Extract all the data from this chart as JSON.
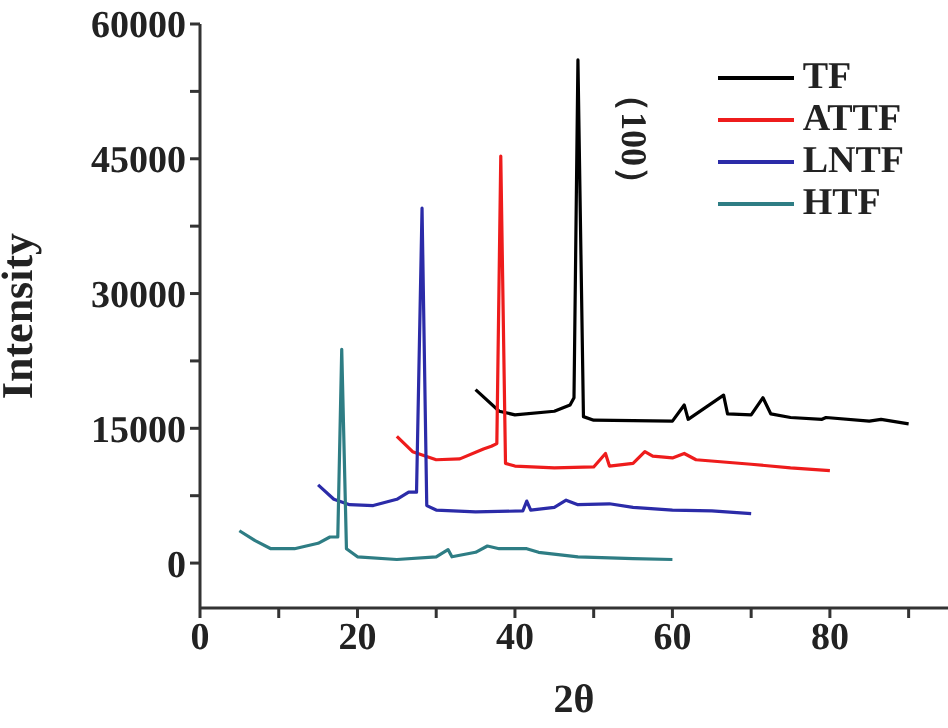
{
  "chart_data": {
    "type": "line",
    "xlabel": "2θ",
    "ylabel": "Intensity",
    "xlim": [
      0,
      95
    ],
    "ylim": [
      -5000,
      60000
    ],
    "xticks": [
      0,
      {
        "value": 10,
        "label": null
      },
      20,
      {
        "value": 30,
        "label": null
      },
      40,
      {
        "value": 50,
        "label": null
      },
      60,
      {
        "value": 70,
        "label": null
      },
      80,
      {
        "value": 90,
        "label": null
      }
    ],
    "yticks": [
      0,
      {
        "value": 7500,
        "label": null
      },
      15000,
      {
        "value": 22500,
        "label": null
      },
      30000,
      {
        "value": 37500,
        "label": null
      },
      45000,
      {
        "value": 52500,
        "label": null
      },
      60000
    ],
    "legend": "top right",
    "marker": "none",
    "line_style": "solid",
    "annotations": [
      {
        "text": "（100）",
        "x": 48,
        "y": 56000
      }
    ],
    "series": [
      {
        "name": "TF",
        "color": "#000000",
        "x": [
          35,
          38,
          40,
          45,
          47,
          47.5,
          48,
          48.7,
          50,
          60,
          61.5,
          62,
          66.5,
          67,
          70,
          71.5,
          72.5,
          75,
          79,
          79.5,
          85,
          86.5,
          90
        ],
        "values": [
          19300,
          16900,
          16500,
          16900,
          17600,
          18400,
          56000,
          16300,
          15900,
          15800,
          17600,
          16000,
          18700,
          16600,
          16500,
          18400,
          16600,
          16200,
          16000,
          16200,
          15800,
          16000,
          15500
        ]
      },
      {
        "name": "ATTF",
        "color": "#ee1c1c",
        "x": [
          25,
          27,
          30,
          33,
          36,
          37,
          37.7,
          38.2,
          38.8,
          40,
          45,
          50,
          51.5,
          52,
          55,
          56.5,
          57.5,
          60,
          61.5,
          63,
          70,
          75,
          80
        ],
        "values": [
          14100,
          12400,
          11500,
          11600,
          12700,
          13000,
          13300,
          45300,
          11100,
          10800,
          10600,
          10700,
          12200,
          10800,
          11100,
          12400,
          11900,
          11700,
          12200,
          11500,
          11000,
          10600,
          10300
        ]
      },
      {
        "name": "LNTF",
        "color": "#2b2ba8",
        "x": [
          15,
          17,
          19,
          22,
          25,
          26.5,
          27.5,
          28.2,
          28.8,
          30,
          35,
          41,
          41.5,
          42,
          45,
          46.5,
          48,
          52,
          55,
          60,
          65,
          70
        ],
        "values": [
          8700,
          7100,
          6500,
          6400,
          7100,
          7900,
          7900,
          39500,
          6400,
          5900,
          5700,
          5800,
          6900,
          5900,
          6200,
          7000,
          6500,
          6600,
          6200,
          5900,
          5800,
          5500
        ]
      },
      {
        "name": "HTF",
        "color": "#2e7d84",
        "x": [
          5,
          7,
          9,
          12,
          15,
          16.5,
          17.5,
          18,
          18.6,
          20,
          25,
          30,
          31.5,
          32,
          35,
          36.5,
          38,
          41.5,
          43,
          48,
          55,
          60
        ],
        "values": [
          3600,
          2500,
          1600,
          1600,
          2200,
          2900,
          2900,
          23800,
          1600,
          700,
          400,
          700,
          1500,
          700,
          1200,
          1900,
          1600,
          1600,
          1200,
          700,
          500,
          400
        ]
      }
    ]
  }
}
